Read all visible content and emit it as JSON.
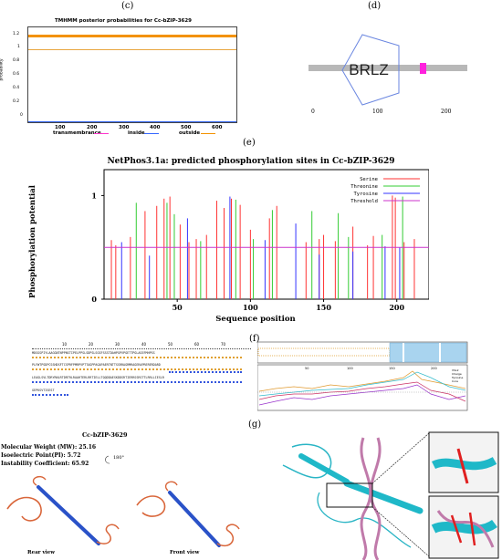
{
  "panels": {
    "c": "(c)",
    "d": "(d)",
    "e": "(e)",
    "f": "(f)",
    "g": "(g)"
  },
  "tmhmm": {
    "title": "TMHMM posterior probabilities for Cc-bZIP-3629",
    "ylabel": "probability",
    "yticks": [
      "1.2",
      "1",
      "0.8",
      "0.6",
      "0.4",
      "0.2",
      "0"
    ],
    "xticks": [
      "100",
      "200",
      "300",
      "400",
      "500",
      "600"
    ],
    "legend": [
      "transmembrance",
      "inside",
      "outside"
    ],
    "colors": {
      "transmembrane": "#ff33cc",
      "inside": "#3366ff",
      "outside": "#ff9900"
    }
  },
  "domain": {
    "label": "BRLZ",
    "ticks": [
      "0",
      "100",
      "200"
    ],
    "colors": {
      "bar": "#b3b3b3",
      "hexagon": "#5577dd",
      "box": "#ff22cc"
    }
  },
  "chart_data": {
    "type": "bar",
    "title": "NetPhos3.1a:  predicted phosphorylation sites in Cc-bZIP-3629",
    "xlabel": "Sequence position",
    "ylabel": "Phosphorylation  potential",
    "xlim": [
      0,
      222
    ],
    "ylim": [
      0,
      1.25
    ],
    "xticks": [
      "50",
      "100",
      "150",
      "200"
    ],
    "yticks": [
      "0",
      "1"
    ],
    "threshold": 0.5,
    "legend_position": "top-right",
    "series": [
      {
        "name": "Serine",
        "color": "#ff3333",
        "x": [
          5,
          8,
          18,
          28,
          36,
          41,
          45,
          52,
          58,
          63,
          70,
          77,
          82,
          87,
          93,
          100,
          113,
          118,
          138,
          147,
          150,
          158,
          170,
          180,
          184,
          197,
          199,
          205,
          212
        ],
        "values": [
          0.57,
          0.52,
          0.6,
          0.85,
          0.9,
          0.97,
          0.99,
          0.72,
          0.55,
          0.58,
          0.62,
          0.95,
          0.88,
          0.97,
          0.91,
          0.67,
          0.78,
          0.9,
          0.55,
          0.58,
          0.62,
          0.56,
          0.7,
          0.52,
          0.61,
          1.0,
          0.98,
          0.55,
          0.58
        ]
      },
      {
        "name": "Threonine",
        "color": "#33cc33",
        "x": [
          22,
          43,
          48,
          66,
          90,
          102,
          115,
          142,
          160,
          167,
          190,
          204
        ],
        "values": [
          0.93,
          0.93,
          0.82,
          0.56,
          0.96,
          0.58,
          0.86,
          0.85,
          0.83,
          0.6,
          0.62,
          0.99
        ]
      },
      {
        "name": "Tyrosine",
        "color": "#3333ff",
        "x": [
          12,
          31,
          57,
          86,
          110,
          131,
          147,
          170,
          192,
          202
        ],
        "values": [
          0.55,
          0.42,
          0.78,
          0.99,
          0.57,
          0.73,
          0.43,
          0.46,
          0.51,
          0.5
        ]
      },
      {
        "name": "Threshold",
        "color": "#cc33cc",
        "x": [
          0,
          222
        ],
        "values": [
          0.5,
          0.5
        ]
      }
    ]
  },
  "sequence": {
    "ruler": [
      "10",
      "20",
      "30",
      "40",
      "50",
      "60",
      "70"
    ],
    "lines": [
      "MDSGSPIYLAAGGNTNPPNSTIPELPPSLSDPSLSGSFSSSTDAHPGPVPGETTPGLASEFMHPSS",
      "PLFWTPSDPCSSHDSFTCSPRFPMRPVPTTAGPPAGAPAERTNTTSSRRAGRMRAGERAPRERERDARD",
      "LEAGLSVLTDRYRNLRTDRTRLRAAHTERLRRTIELLTQQDDAESKDDSRTIERRSSRSTTLRRLLIESLR",
      "GEPKSVTISEST"
    ]
  },
  "disorder": {
    "xticks": [
      "50",
      "100",
      "150",
      "200"
    ],
    "legend": [
      "VSL2",
      "Charge",
      "Tyrosine",
      "Core"
    ]
  },
  "protein": {
    "name": "Cc-bZIP-3629",
    "mw": "Molecular Weight (MW): 25.16",
    "pi": "Isoelectric Point(PI): 5.72",
    "instability": "Instability Coefficient: 65.92",
    "rotation": "180°",
    "rear": "Rear view",
    "front": "Front view"
  }
}
